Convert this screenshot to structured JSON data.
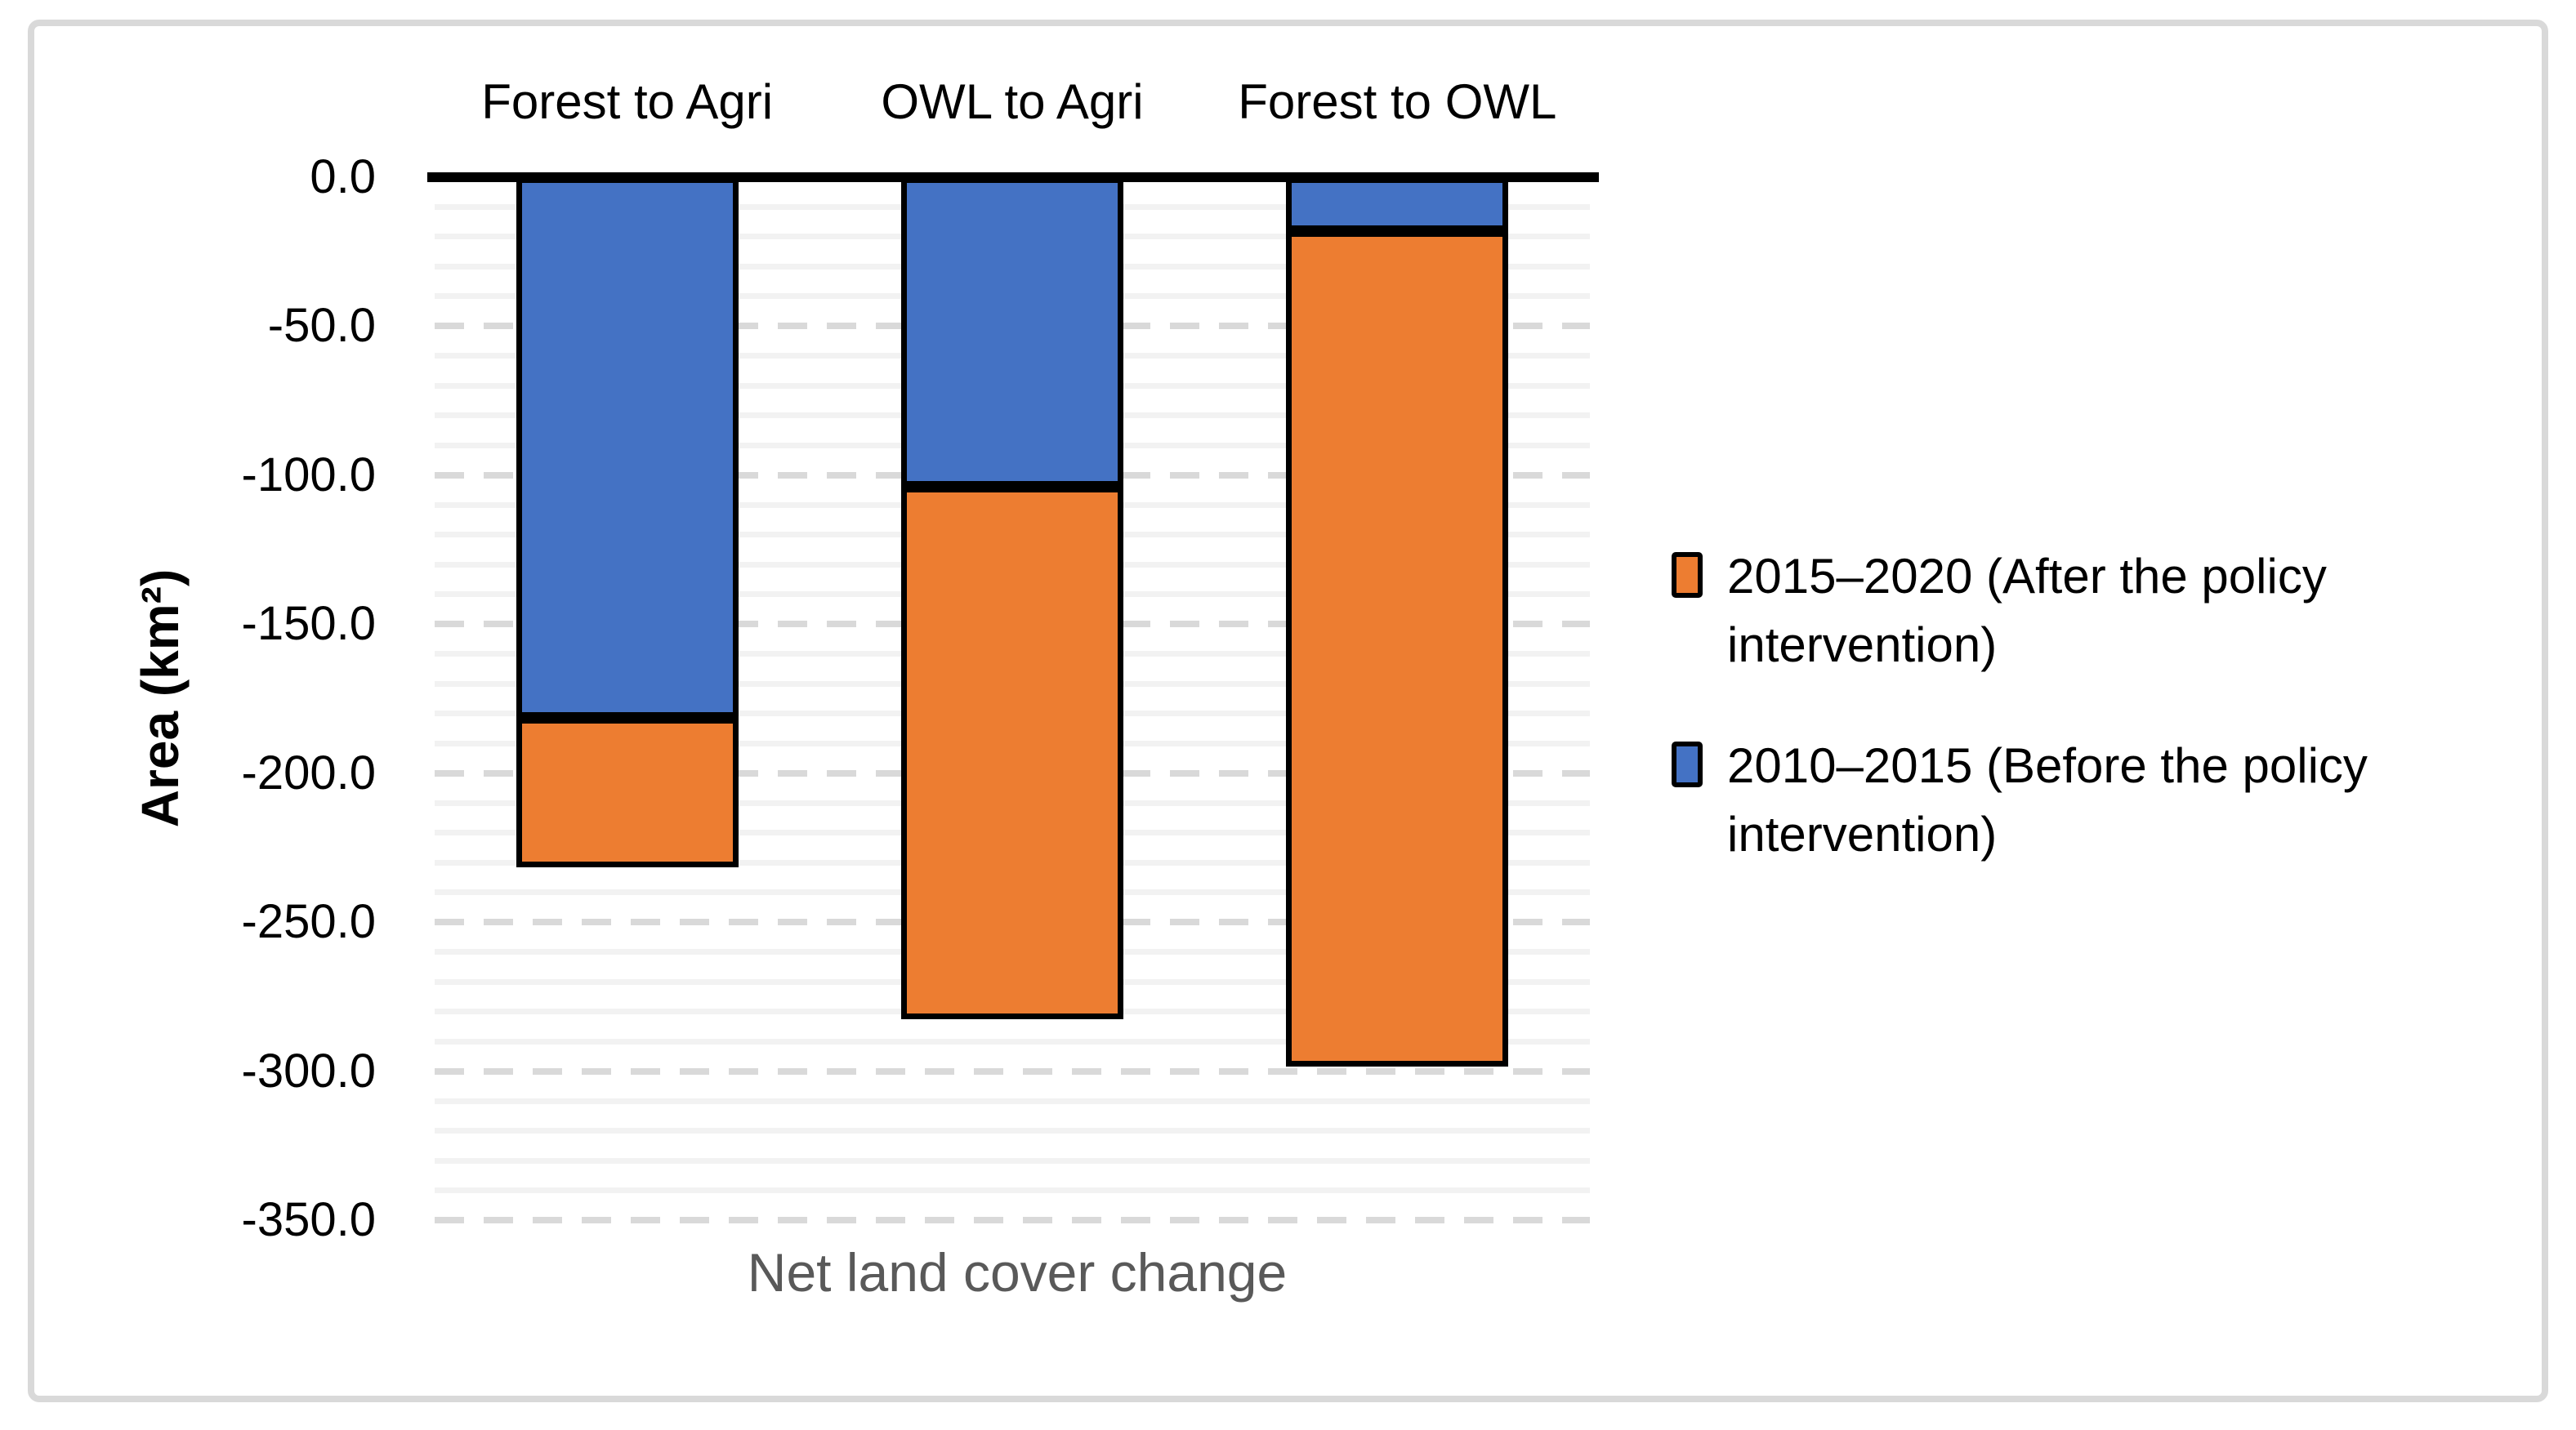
{
  "chart_data": {
    "type": "bar",
    "stacked": true,
    "orientation": "vertical-negative",
    "categories": [
      "Forest to Agri",
      "OWL to Agri",
      "Forest to OWL"
    ],
    "series": [
      {
        "name": "2015–2020 (After the policy intervention)",
        "color": "#ED7D31",
        "values": [
          -50.0,
          -178.5,
          -280.5
        ]
      },
      {
        "name": "2010–2015 (Before the policy intervention)",
        "color": "#4472C4",
        "values": [
          -181.5,
          -104.0,
          -18.0
        ]
      }
    ],
    "xlabel": "Net land cover change",
    "ylabel": "Area (km²)",
    "ylim": [
      -350,
      0
    ],
    "yticks": [
      0,
      -50,
      -100,
      -150,
      -200,
      -250,
      -300,
      -350
    ],
    "ytick_labels": [
      "0.0",
      "-50.0",
      "-100.0",
      "-150.0",
      "-200.0",
      "-250.0",
      "-300.0",
      "-350.0"
    ],
    "minor_grid_step": 10,
    "grid": "horizontal",
    "legend_position": "right"
  },
  "colors": {
    "after_series": "#ED7D31",
    "before_series": "#4472C4",
    "bar_border": "#000000",
    "zero_axis": "#000000",
    "minor_gridline": "#F2F2F2",
    "major_gridline": "#D9D9D9",
    "frame_border": "#D9D9D9",
    "x_title_text": "#595959",
    "axis_text": "#000000",
    "background": "#FFFFFF"
  }
}
